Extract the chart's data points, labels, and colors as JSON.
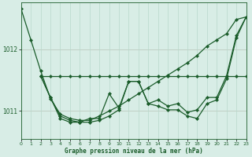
{
  "title": "Graphe pression niveau de la mer (hPa)",
  "bg_color": "#d8ede6",
  "grid_color": "#b8d8cc",
  "line_color": "#1a5c2a",
  "xlim": [
    0,
    23
  ],
  "ylim": [
    1010.55,
    1012.75
  ],
  "yticks": [
    1011,
    1012
  ],
  "xticks": [
    0,
    1,
    2,
    3,
    4,
    5,
    6,
    7,
    8,
    9,
    10,
    11,
    12,
    13,
    14,
    15,
    16,
    17,
    18,
    19,
    20,
    21,
    22,
    23
  ],
  "series1_x": [
    0,
    1,
    2,
    3,
    4,
    5,
    6,
    7,
    8,
    9,
    10,
    11,
    12,
    13,
    14,
    15,
    16,
    17,
    18,
    19,
    20,
    21,
    22,
    23
  ],
  "series1_y": [
    1012.65,
    1012.15,
    1011.65,
    1011.2,
    1010.95,
    1010.88,
    1010.85,
    1010.85,
    1010.92,
    1011.0,
    1011.08,
    1011.18,
    1011.28,
    1011.38,
    1011.48,
    1011.58,
    1011.68,
    1011.78,
    1011.9,
    1012.05,
    1012.15,
    1012.25,
    1012.48,
    1012.52
  ],
  "series2_x": [
    2,
    3,
    4,
    5,
    6,
    7,
    8,
    9,
    10,
    11,
    12,
    13,
    14,
    15,
    16,
    17,
    18,
    19,
    20,
    21,
    22,
    23
  ],
  "series2_y": [
    1011.57,
    1011.22,
    1010.88,
    1010.82,
    1010.82,
    1010.88,
    1010.88,
    1011.28,
    1011.05,
    1011.48,
    1011.48,
    1011.12,
    1011.18,
    1011.08,
    1011.12,
    1010.98,
    1011.02,
    1011.22,
    1011.22,
    1011.57,
    1012.22,
    1012.52
  ],
  "series3_x": [
    2,
    3,
    4,
    5,
    6,
    7,
    8,
    9,
    10,
    11,
    12,
    13,
    14,
    15,
    16,
    17,
    18,
    19,
    20,
    21,
    22,
    23
  ],
  "series3_y": [
    1011.57,
    1011.57,
    1011.57,
    1011.57,
    1011.57,
    1011.57,
    1011.57,
    1011.57,
    1011.57,
    1011.57,
    1011.57,
    1011.57,
    1011.57,
    1011.57,
    1011.57,
    1011.57,
    1011.57,
    1011.57,
    1011.57,
    1011.57,
    1011.57,
    1011.57
  ],
  "series4_x": [
    2,
    3,
    4,
    5,
    6,
    7,
    8,
    9,
    10,
    11,
    12,
    13,
    14,
    15,
    16,
    17,
    18,
    19,
    20,
    21,
    22,
    23
  ],
  "series4_y": [
    1011.57,
    1011.22,
    1010.92,
    1010.85,
    1010.82,
    1010.82,
    1010.85,
    1010.92,
    1011.02,
    1011.48,
    1011.48,
    1011.12,
    1011.08,
    1011.02,
    1011.02,
    1010.92,
    1010.88,
    1011.12,
    1011.18,
    1011.52,
    1012.18,
    1012.52
  ]
}
